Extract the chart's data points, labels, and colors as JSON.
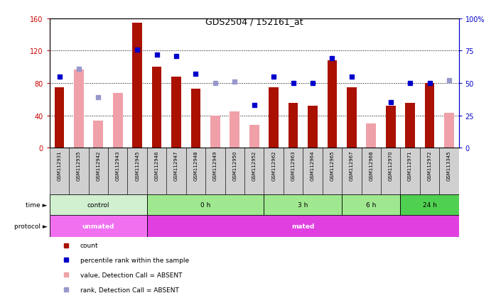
{
  "title": "GDS2504 / 152161_at",
  "samples": [
    "GSM112931",
    "GSM112935",
    "GSM112942",
    "GSM112943",
    "GSM112945",
    "GSM112946",
    "GSM112947",
    "GSM112948",
    "GSM112949",
    "GSM112950",
    "GSM112952",
    "GSM112962",
    "GSM112963",
    "GSM112964",
    "GSM112965",
    "GSM112967",
    "GSM112968",
    "GSM112970",
    "GSM112971",
    "GSM112972",
    "GSM113345"
  ],
  "count_present": [
    75,
    0,
    0,
    0,
    155,
    100,
    88,
    73,
    0,
    0,
    0,
    75,
    55,
    52,
    108,
    75,
    0,
    52,
    55,
    80,
    0
  ],
  "count_absent": [
    0,
    97,
    33,
    68,
    0,
    0,
    0,
    0,
    40,
    45,
    28,
    0,
    0,
    0,
    0,
    0,
    30,
    0,
    0,
    0,
    43
  ],
  "is_absent": [
    false,
    true,
    true,
    true,
    false,
    false,
    false,
    false,
    true,
    true,
    true,
    false,
    false,
    false,
    false,
    false,
    true,
    false,
    false,
    false,
    true
  ],
  "rank_present": [
    55,
    0,
    0,
    0,
    76,
    72,
    71,
    57,
    0,
    0,
    33,
    55,
    50,
    50,
    69,
    55,
    0,
    35,
    50,
    50,
    0
  ],
  "rank_absent": [
    0,
    61,
    39,
    0,
    0,
    0,
    0,
    0,
    50,
    51,
    0,
    0,
    0,
    0,
    0,
    0,
    0,
    0,
    0,
    0,
    52
  ],
  "is_rank_absent": [
    false,
    true,
    true,
    true,
    false,
    false,
    false,
    false,
    true,
    true,
    false,
    false,
    false,
    false,
    false,
    false,
    false,
    false,
    false,
    false,
    true
  ],
  "time_groups": [
    {
      "label": "control",
      "start": 0,
      "end": 4,
      "color": "#d0f0d0"
    },
    {
      "label": "0 h",
      "start": 5,
      "end": 10,
      "color": "#a0e890"
    },
    {
      "label": "3 h",
      "start": 11,
      "end": 14,
      "color": "#a0e890"
    },
    {
      "label": "6 h",
      "start": 15,
      "end": 17,
      "color": "#a0e890"
    },
    {
      "label": "24 h",
      "start": 18,
      "end": 20,
      "color": "#50d050"
    }
  ],
  "protocol_groups": [
    {
      "label": "unmated",
      "start": 0,
      "end": 4,
      "color": "#f070f0"
    },
    {
      "label": "mated",
      "start": 5,
      "end": 20,
      "color": "#e040e0"
    }
  ],
  "ylim_left": [
    0,
    160
  ],
  "ylim_right": [
    0,
    100
  ],
  "yticks_left": [
    0,
    40,
    80,
    120,
    160
  ],
  "yticks_right": [
    0,
    25,
    50,
    75,
    100
  ],
  "bar_color": "#aa1100",
  "absent_bar_color": "#f0a0a8",
  "rank_color": "#0000cc",
  "absent_rank_color": "#9898cc",
  "left_axis_color": "#cc0000",
  "right_axis_color": "#0000cc",
  "label_box_color": "#d0d0d0"
}
